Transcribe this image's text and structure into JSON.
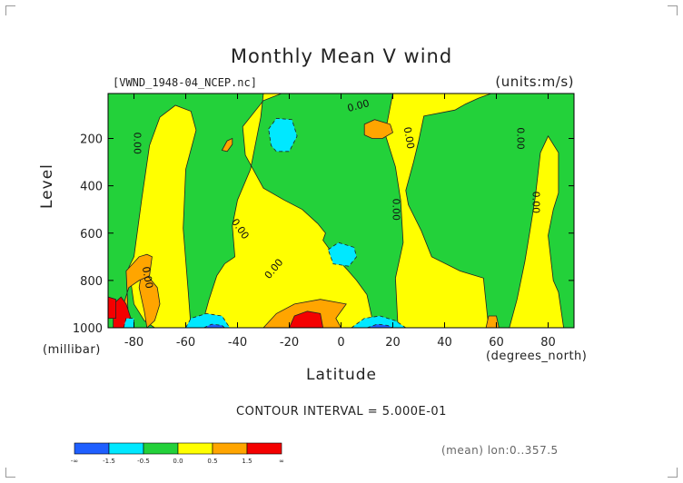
{
  "chart_data": {
    "type": "heatmap",
    "title": "Monthly Mean V wind",
    "file_label": "[VWND_1948-04_NCEP.nc]",
    "units_label": "(units:m/s)",
    "ylabel": "Level",
    "yunit": "(millibar)",
    "xlabel": "Latitude",
    "xunit": "(degrees_north)",
    "xlim": [
      -90,
      90
    ],
    "ylim": [
      1000,
      10
    ],
    "x_ticks": [
      -80,
      -60,
      -40,
      -20,
      0,
      20,
      40,
      60,
      80
    ],
    "y_ticks": [
      200,
      400,
      600,
      800,
      1000
    ],
    "contour_interval_text": "CONTOUR INTERVAL = 5.000E-01",
    "footnote": "(mean) lon:0..357.5",
    "contour_labels": [
      "0.00",
      "0.00",
      "0.00",
      "0.00",
      "0.00",
      "0.00",
      "0.00",
      "0.00",
      "0.00"
    ],
    "color_bins": [
      {
        "range": "< -1.5",
        "color": "#1f5fff"
      },
      {
        "range": "-1.5 to -0.5",
        "color": "#00e8ff"
      },
      {
        "range": "-0.5 to 0.0",
        "color": "#23d13a"
      },
      {
        "range": "0.0 to 0.5",
        "color": "#ffff00"
      },
      {
        "range": "0.5 to 1.5",
        "color": "#ffa500"
      },
      {
        "range": "> 1.5",
        "color": "#f40000"
      }
    ],
    "colorbar_labels": [
      "-∞",
      "-1.5",
      "-0.5",
      "0.0",
      "0.5",
      "1.5",
      "∞"
    ],
    "background_color": "#23d13a",
    "regions": [
      {
        "sign": "positive",
        "level": 0.25,
        "lat_range": [
          -77,
          -55
        ],
        "lev_range": [
          60,
          1000
        ]
      },
      {
        "sign": "positive",
        "level": 0.25,
        "lat_range": [
          -42,
          20
        ],
        "lev_range": [
          10,
          1000
        ]
      },
      {
        "sign": "positive",
        "level": 0.25,
        "lat_range": [
          20,
          58
        ],
        "lev_range": [
          10,
          1000
        ]
      },
      {
        "sign": "positive",
        "level": 0.25,
        "lat_range": [
          66,
          84
        ],
        "lev_range": [
          200,
          1000
        ]
      },
      {
        "sign": "positive",
        "level": 1.0,
        "lat_range": [
          -30,
          0
        ],
        "lev_range": [
          880,
          1000
        ]
      },
      {
        "sign": "positive",
        "level": 1.0,
        "lat_range": [
          8,
          20
        ],
        "lev_range": [
          120,
          200
        ]
      },
      {
        "sign": "positive",
        "level": 2.0,
        "lat_range": [
          -20,
          -7
        ],
        "lev_range": [
          930,
          1000
        ]
      },
      {
        "sign": "positive",
        "level": 2.0,
        "lat_range": [
          -88,
          -80
        ],
        "lev_range": [
          870,
          1000
        ]
      },
      {
        "sign": "negative",
        "level": -1.0,
        "lat_range": [
          -28,
          -17
        ],
        "lev_range": [
          100,
          260
        ]
      },
      {
        "sign": "negative",
        "level": -1.0,
        "lat_range": [
          -5,
          6
        ],
        "lev_range": [
          640,
          740
        ]
      },
      {
        "sign": "negative",
        "level": -1.0,
        "lat_range": [
          -60,
          -43
        ],
        "lev_range": [
          940,
          1000
        ]
      },
      {
        "sign": "negative",
        "level": -1.0,
        "lat_range": [
          5,
          25
        ],
        "lev_range": [
          950,
          1000
        ]
      }
    ]
  }
}
